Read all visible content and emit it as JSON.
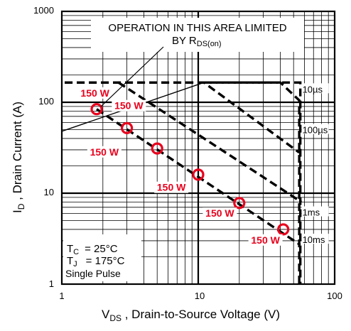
{
  "chart_data": {
    "type": "line",
    "x_scale": "log",
    "y_scale": "log",
    "xlim": [
      1,
      100
    ],
    "ylim": [
      1,
      1000
    ],
    "x_ticks": [
      "1",
      "10",
      "100"
    ],
    "y_ticks": [
      "1",
      "10",
      "100",
      "1000"
    ],
    "xlabel_main": "V",
    "xlabel_sub": "DS",
    "xlabel_rest": " , Drain-to-Source Voltage (V)",
    "ylabel_main": "I",
    "ylabel_sub": "D",
    "ylabel_rest": " , Drain Current (A)",
    "grid": true,
    "annotation_line1": "OPERATION IN THIS AREA LIMITED",
    "annotation_line2_main": "BY R",
    "annotation_line2_sub": "DS(on)",
    "legend_box": {
      "tc_main": "T",
      "tc_sub": "C",
      "tc_value": "= 25°C",
      "tj_main": "T",
      "tj_sub": "J",
      "tj_value": "= 175°C",
      "pulse": "Single Pulse"
    },
    "rds_on_limit": [
      [
        1,
        48
      ],
      [
        11,
        165
      ]
    ],
    "series": [
      {
        "name": "10µs",
        "points": [
          [
            1.05,
            165
          ],
          [
            11,
            165
          ],
          [
            55,
            28
          ]
        ]
      },
      {
        "name": "100µs",
        "points": [
          [
            11,
            165
          ],
          [
            40,
            165
          ],
          [
            55,
            105
          ],
          [
            55,
            1
          ]
        ]
      },
      {
        "name": "1ms",
        "points": [
          [
            2.6,
            165
          ],
          [
            57,
            8
          ]
        ]
      },
      {
        "name": "10ms",
        "points": [
          [
            1.05,
            165
          ],
          [
            56,
            165
          ],
          [
            56,
            1
          ]
        ]
      },
      {
        "name": "150 W",
        "points": [
          [
            1.8,
            84
          ],
          [
            56,
            2.7
          ]
        ]
      }
    ],
    "power_points": [
      {
        "x": 1.8,
        "y": 84,
        "label": "150 W"
      },
      {
        "x": 3.0,
        "y": 52,
        "label": "150 W"
      },
      {
        "x": 5.0,
        "y": 31,
        "label": "150 W"
      },
      {
        "x": 10.0,
        "y": 16,
        "label": "150 W"
      },
      {
        "x": 20.0,
        "y": 7.8,
        "label": "150 W"
      },
      {
        "x": 42.0,
        "y": 4.0,
        "label": "150 W"
      }
    ],
    "series_labels": [
      {
        "text": "10µs",
        "x": 58,
        "y": 140
      },
      {
        "text": "100µs",
        "x": 58,
        "y": 50
      },
      {
        "text": "1ms",
        "x": 58,
        "y": 6.2
      },
      {
        "text": "10ms",
        "x": 58,
        "y": 3.1
      }
    ],
    "power_label_positions": [
      {
        "x": 1.75,
        "y": 120
      },
      {
        "x": 3.1,
        "y": 87
      },
      {
        "x": 2.05,
        "y": 27
      },
      {
        "x": 6.35,
        "y": 11
      },
      {
        "x": 14.4,
        "y": 5.7
      },
      {
        "x": 31.1,
        "y": 2.9
      }
    ],
    "colors": {
      "grid": "#000000",
      "curves": "#000000",
      "marker": "#e8001c",
      "label": "#e8001c"
    }
  }
}
